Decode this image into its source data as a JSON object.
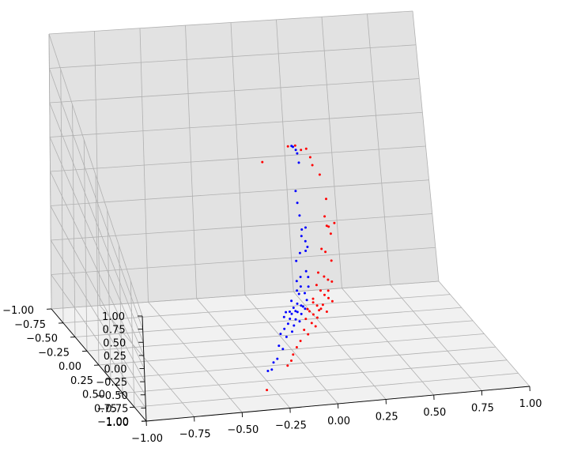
{
  "chart_data": {
    "type": "scatter",
    "projection": "3d",
    "title": "",
    "xlabel": "",
    "ylabel": "",
    "zlabel": "",
    "xlim": [
      -1,
      1
    ],
    "ylim": [
      -1,
      1
    ],
    "zlim": [
      -1,
      1
    ],
    "x_ticks": [
      "−1.00",
      "−0.75",
      "−0.50",
      "−0.25",
      "0.00",
      "0.25",
      "0.50",
      "0.75",
      "1.00"
    ],
    "y_ticks": [
      "−1.00",
      "−0.75",
      "−0.50",
      "−0.25",
      "0.00",
      "0.25",
      "0.50",
      "0.75",
      "1.00"
    ],
    "z_ticks": [
      "−1.00",
      "−0.75",
      "−0.50",
      "−0.25",
      "0.00",
      "0.25",
      "0.50",
      "0.75",
      "1.00"
    ],
    "grid": true,
    "pane_colors": {
      "left": "#e9e9e9",
      "right": "#e2e2e2",
      "floor": "#f1f1f1"
    },
    "series": [
      {
        "color": "#0000ff",
        "points": [
          [
            0.01,
            0.05,
            0.76
          ],
          [
            0.02,
            0.04,
            0.74
          ],
          [
            0.04,
            0.02,
            0.69
          ],
          [
            0.05,
            0.01,
            0.65
          ],
          [
            0.06,
            0.0,
            0.56
          ],
          [
            0.04,
            0.0,
            0.33
          ],
          [
            0.05,
            -0.01,
            0.22
          ],
          [
            0.06,
            -0.01,
            0.11
          ],
          [
            0.07,
            -0.01,
            -0.01
          ],
          [
            0.09,
            -0.01,
            0.0
          ],
          [
            0.07,
            -0.02,
            -0.07
          ],
          [
            0.09,
            -0.02,
            -0.12
          ],
          [
            0.1,
            -0.02,
            -0.17
          ],
          [
            0.09,
            -0.02,
            -0.2
          ],
          [
            0.06,
            -0.02,
            -0.21
          ],
          [
            0.04,
            -0.02,
            -0.27
          ],
          [
            0.09,
            -0.02,
            -0.37
          ],
          [
            0.06,
            -0.02,
            -0.41
          ],
          [
            0.04,
            -0.02,
            -0.44
          ],
          [
            0.1,
            -0.02,
            -0.42
          ],
          [
            0.06,
            -0.02,
            -0.49
          ],
          [
            0.04,
            -0.02,
            -0.52
          ],
          [
            0.05,
            -0.02,
            -0.55
          ],
          [
            0.08,
            -0.02,
            -0.55
          ],
          [
            0.1,
            -0.02,
            -0.5
          ],
          [
            0.01,
            -0.02,
            -0.6
          ],
          [
            0.04,
            -0.02,
            -0.63
          ],
          [
            0.02,
            -0.02,
            -0.66
          ],
          [
            0.06,
            -0.02,
            -0.65
          ],
          [
            0.0,
            -0.02,
            -0.69
          ],
          [
            -0.02,
            -0.02,
            -0.69
          ],
          [
            0.01,
            -0.02,
            -0.71
          ],
          [
            0.03,
            -0.02,
            -0.69
          ],
          [
            0.07,
            -0.02,
            -0.66
          ],
          [
            0.09,
            -0.02,
            -0.61
          ],
          [
            -0.03,
            -0.02,
            -0.73
          ],
          [
            0.0,
            -0.02,
            -0.75
          ],
          [
            0.03,
            -0.02,
            -0.76
          ],
          [
            -0.01,
            -0.02,
            -0.79
          ],
          [
            0.02,
            -0.02,
            -0.81
          ],
          [
            -0.03,
            -0.02,
            -0.83
          ],
          [
            0.01,
            -0.02,
            -0.86
          ],
          [
            -0.05,
            -0.02,
            -0.87
          ],
          [
            -0.02,
            -0.02,
            -0.9
          ],
          [
            0.04,
            -0.02,
            -0.7
          ],
          [
            0.06,
            -0.02,
            -0.72
          ],
          [
            -0.06,
            -0.02,
            -0.97
          ],
          [
            -0.04,
            -0.02,
            -1.0
          ],
          [
            -0.07,
            -0.02,
            -1.08
          ],
          [
            -0.1,
            -0.02,
            -1.17
          ],
          [
            -0.12,
            -0.02,
            -1.18
          ],
          [
            -0.09,
            -0.02,
            -1.11
          ],
          [
            0.08,
            -0.02,
            -0.68
          ],
          [
            0.05,
            -0.02,
            -0.78
          ]
        ]
      },
      {
        "color": "#ff0000",
        "points": [
          [
            -0.13,
            0.0,
            0.65
          ],
          [
            0.0,
            0.02,
            0.74
          ],
          [
            0.04,
            0.01,
            0.72
          ],
          [
            0.07,
            0.01,
            0.67
          ],
          [
            0.1,
            0.0,
            0.66
          ],
          [
            0.12,
            0.0,
            0.58
          ],
          [
            0.13,
            0.0,
            0.51
          ],
          [
            0.17,
            -0.01,
            0.41
          ],
          [
            0.2,
            -0.01,
            0.2
          ],
          [
            0.19,
            -0.01,
            0.06
          ],
          [
            0.2,
            -0.01,
            -0.02
          ],
          [
            0.21,
            -0.01,
            -0.03
          ],
          [
            0.24,
            -0.01,
            -0.01
          ],
          [
            0.22,
            -0.01,
            -0.09
          ],
          [
            0.17,
            -0.01,
            -0.2
          ],
          [
            0.19,
            -0.01,
            -0.23
          ],
          [
            0.22,
            -0.01,
            -0.31
          ],
          [
            0.15,
            -0.01,
            -0.39
          ],
          [
            0.18,
            -0.01,
            -0.43
          ],
          [
            0.2,
            -0.01,
            -0.46
          ],
          [
            0.22,
            -0.01,
            -0.48
          ],
          [
            0.14,
            -0.01,
            -0.49
          ],
          [
            0.16,
            -0.01,
            -0.54
          ],
          [
            0.18,
            -0.01,
            -0.58
          ],
          [
            0.2,
            -0.01,
            -0.61
          ],
          [
            0.22,
            -0.01,
            -0.64
          ],
          [
            0.12,
            -0.01,
            -0.63
          ],
          [
            0.14,
            -0.01,
            -0.66
          ],
          [
            0.16,
            -0.01,
            -0.69
          ],
          [
            0.19,
            -0.01,
            -0.72
          ],
          [
            0.1,
            -0.01,
            -0.7
          ],
          [
            0.12,
            -0.01,
            -0.73
          ],
          [
            0.14,
            -0.01,
            -0.76
          ],
          [
            0.08,
            -0.01,
            -0.76
          ],
          [
            0.11,
            -0.01,
            -0.8
          ],
          [
            0.13,
            -0.01,
            -0.83
          ],
          [
            0.07,
            -0.01,
            -0.85
          ],
          [
            0.09,
            -0.01,
            -0.89
          ],
          [
            0.15,
            -0.01,
            -0.7
          ],
          [
            0.17,
            -0.01,
            -0.66
          ],
          [
            0.05,
            -0.01,
            -0.94
          ],
          [
            0.03,
            -0.01,
            -0.99
          ],
          [
            0.01,
            -0.01,
            -1.05
          ],
          [
            0.0,
            -0.01,
            -1.1
          ],
          [
            -0.02,
            -0.01,
            -1.14
          ],
          [
            0.2,
            -0.01,
            -0.55
          ],
          [
            0.12,
            -0.01,
            -0.6
          ],
          [
            0.09,
            -0.01,
            -0.68
          ],
          [
            -0.13,
            -0.01,
            -1.34
          ]
        ]
      }
    ]
  }
}
